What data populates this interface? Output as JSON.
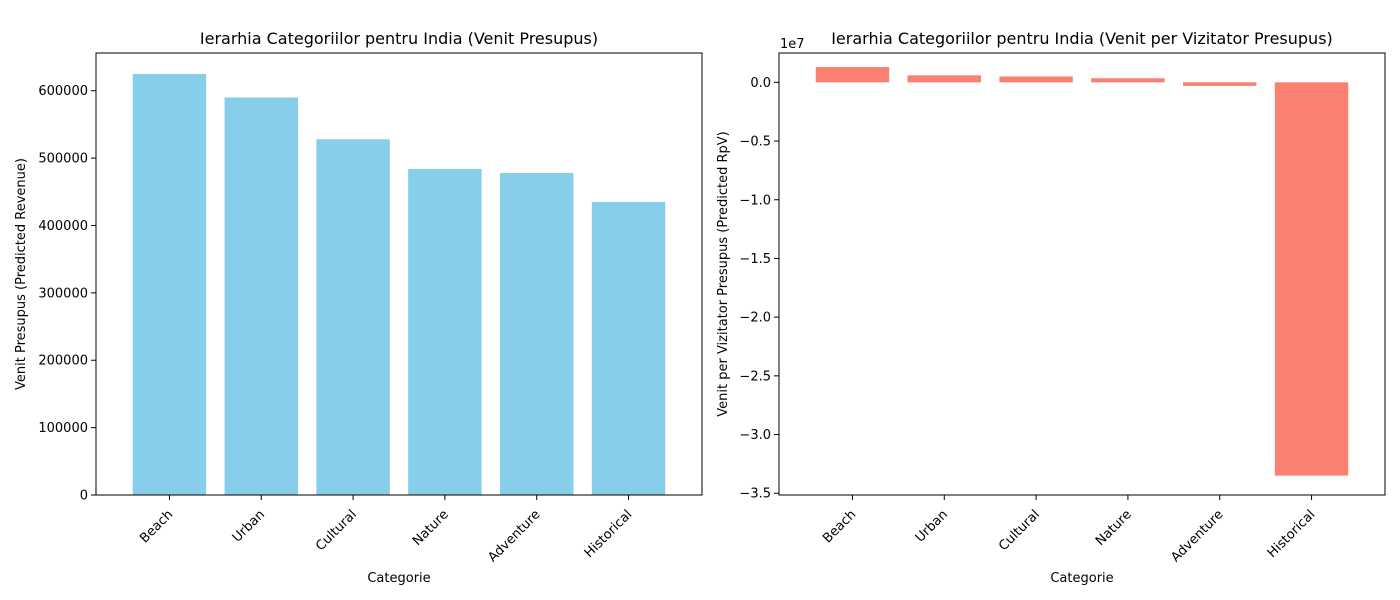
{
  "chart_data": [
    {
      "type": "bar",
      "title": "Ierarhia Categoriilor pentru India (Venit Presupus)",
      "xlabel": "Categorie",
      "ylabel": "Venit Presupus (Predicted Revenue)",
      "categories": [
        "Beach",
        "Urban",
        "Cultural",
        "Nature",
        "Adventure",
        "Historical"
      ],
      "values": [
        625000,
        590000,
        528000,
        484000,
        478000,
        435000
      ],
      "ylim": [
        0,
        656000
      ],
      "yticks": [
        0,
        100000,
        200000,
        300000,
        400000,
        500000,
        600000
      ],
      "ytick_labels": [
        "0",
        "100000",
        "200000",
        "300000",
        "400000",
        "500000",
        "600000"
      ],
      "offset_label": "",
      "color": "#87ceeb",
      "grid": false
    },
    {
      "type": "bar",
      "title": "Ierarhia Categoriilor pentru India (Venit per Vizitator Presupus)",
      "xlabel": "Categorie",
      "ylabel": "Venit per Vizitator Presupus (Predicted RpV)",
      "categories": [
        "Beach",
        "Urban",
        "Cultural",
        "Nature",
        "Adventure",
        "Historical"
      ],
      "values": [
        1300000,
        600000,
        500000,
        350000,
        -300000,
        -33500000
      ],
      "ylim": [
        -35150000,
        2500000
      ],
      "yticks": [
        0,
        -5000000,
        -10000000,
        -15000000,
        -20000000,
        -25000000,
        -30000000,
        -35000000
      ],
      "ytick_labels": [
        "0.0",
        "−0.5",
        "−1.0",
        "−1.5",
        "−2.0",
        "−2.5",
        "−3.0",
        "−3.5"
      ],
      "offset_label": "1e7",
      "color": "#fa8072",
      "grid": false
    }
  ]
}
